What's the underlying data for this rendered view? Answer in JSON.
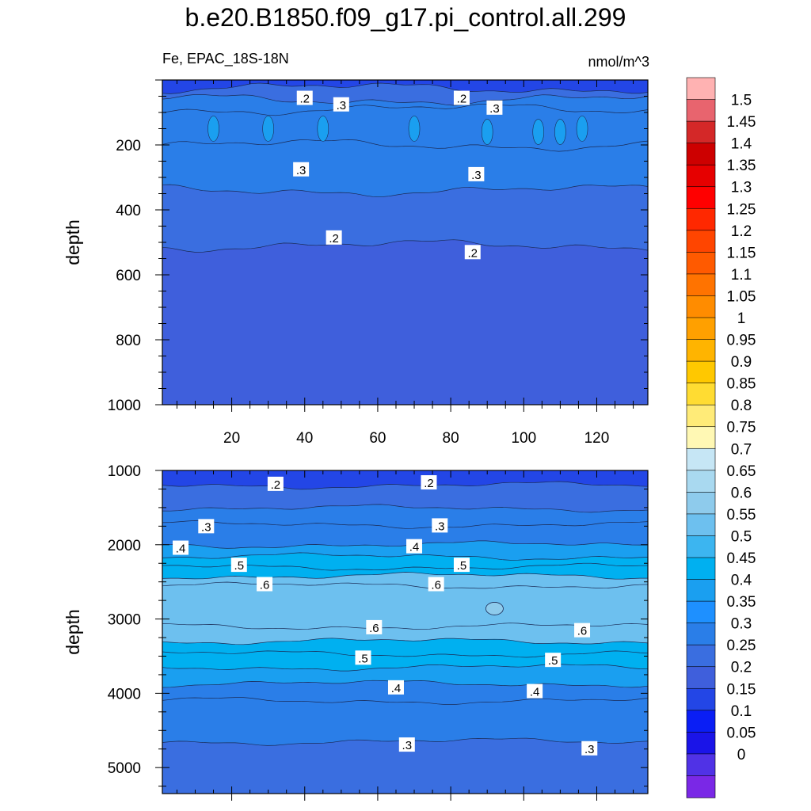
{
  "figure": {
    "title": "b.e20.B1850.f09_g17.pi_control.all.299",
    "variable_region": "Fe, EPAC_18S-18N",
    "units": "nmol/m^3"
  },
  "chart_data": [
    {
      "type": "heatmap",
      "panel": "upper",
      "ylabel": "depth",
      "xlabel": "",
      "y_reversed": true,
      "xlim": [
        1,
        134
      ],
      "ylim": [
        1000,
        0
      ],
      "xticks": [
        20,
        40,
        60,
        80,
        100,
        120
      ],
      "yticks": [
        200,
        400,
        600,
        800,
        1000
      ],
      "contour_labels": [
        {
          "text": ".2",
          "x": 40,
          "y": 55
        },
        {
          "text": ".3",
          "x": 50,
          "y": 75
        },
        {
          "text": ".2",
          "x": 83,
          "y": 55
        },
        {
          "text": ".3",
          "x": 92,
          "y": 85
        },
        {
          "text": ".3",
          "x": 39,
          "y": 275
        },
        {
          "text": ".3",
          "x": 87,
          "y": 290
        },
        {
          "text": ".2",
          "x": 48,
          "y": 485
        },
        {
          "text": ".2",
          "x": 86,
          "y": 530
        }
      ],
      "layers": [
        {
          "from_value": 0.15,
          "to_value": 0.2,
          "depth_top": 0,
          "depth_bottom": 25
        },
        {
          "from_value": 0.2,
          "to_value": 0.25,
          "depth_top": 25,
          "depth_bottom": 60
        },
        {
          "from_value": 0.25,
          "to_value": 0.3,
          "depth_top": 60,
          "depth_bottom": 90
        },
        {
          "from_value": 0.3,
          "to_value": 0.35,
          "depth_top": 90,
          "depth_bottom": 200
        },
        {
          "from_value": 0.3,
          "to_value": 0.3,
          "depth_top": 200,
          "depth_bottom": 340
        },
        {
          "from_value": 0.25,
          "to_value": 0.25,
          "depth_top": 340,
          "depth_bottom": 510
        },
        {
          "from_value": 0.2,
          "to_value": 0.2,
          "depth_top": 510,
          "depth_bottom": 1000
        }
      ]
    },
    {
      "type": "heatmap",
      "panel": "lower",
      "ylabel": "depth",
      "xlabel": "",
      "y_reversed": true,
      "xlim": [
        1,
        134
      ],
      "ylim": [
        5350,
        1000
      ],
      "xticks": [],
      "yticks": [
        1000,
        2000,
        3000,
        4000,
        5000
      ],
      "contour_labels": [
        {
          "text": ".2",
          "x": 32,
          "y": 1180
        },
        {
          "text": ".2",
          "x": 74,
          "y": 1160
        },
        {
          "text": ".3",
          "x": 13,
          "y": 1750
        },
        {
          "text": ".3",
          "x": 77,
          "y": 1740
        },
        {
          "text": ".4",
          "x": 6,
          "y": 2040
        },
        {
          "text": ".4",
          "x": 70,
          "y": 2020
        },
        {
          "text": ".5",
          "x": 22,
          "y": 2270
        },
        {
          "text": ".5",
          "x": 83,
          "y": 2270
        },
        {
          "text": ".6",
          "x": 29,
          "y": 2530
        },
        {
          "text": ".6",
          "x": 76,
          "y": 2530
        },
        {
          "text": ".6",
          "x": 59,
          "y": 3110
        },
        {
          "text": ".6",
          "x": 116,
          "y": 3150
        },
        {
          "text": ".5",
          "x": 56,
          "y": 3520
        },
        {
          "text": ".5",
          "x": 108,
          "y": 3550
        },
        {
          "text": ".4",
          "x": 65,
          "y": 3920
        },
        {
          "text": ".4",
          "x": 103,
          "y": 3970
        },
        {
          "text": ".3",
          "x": 68,
          "y": 4690
        },
        {
          "text": ".3",
          "x": 118,
          "y": 4740
        }
      ],
      "layers": [
        {
          "from_value": 0.15,
          "to_value": 0.2,
          "depth_top": 1000,
          "depth_bottom": 1200
        },
        {
          "from_value": 0.2,
          "to_value": 0.25,
          "depth_top": 1200,
          "depth_bottom": 1510
        },
        {
          "from_value": 0.25,
          "to_value": 0.3,
          "depth_top": 1510,
          "depth_bottom": 1730
        },
        {
          "from_value": 0.3,
          "to_value": 0.35,
          "depth_top": 1730,
          "depth_bottom": 2000
        },
        {
          "from_value": 0.35,
          "to_value": 0.4,
          "depth_top": 2000,
          "depth_bottom": 2160
        },
        {
          "from_value": 0.4,
          "to_value": 0.45,
          "depth_top": 2160,
          "depth_bottom": 2300
        },
        {
          "from_value": 0.45,
          "to_value": 0.5,
          "depth_top": 2300,
          "depth_bottom": 2420
        },
        {
          "from_value": 0.5,
          "to_value": 0.55,
          "depth_top": 2420,
          "depth_bottom": 2550
        },
        {
          "from_value": 0.55,
          "to_value": 0.6,
          "depth_top": 2550,
          "depth_bottom": 3100
        },
        {
          "from_value": 0.5,
          "to_value": 0.55,
          "depth_top": 3100,
          "depth_bottom": 3300
        },
        {
          "from_value": 0.45,
          "to_value": 0.5,
          "depth_top": 3300,
          "depth_bottom": 3470
        },
        {
          "from_value": 0.4,
          "to_value": 0.45,
          "depth_top": 3470,
          "depth_bottom": 3650
        },
        {
          "from_value": 0.35,
          "to_value": 0.4,
          "depth_top": 3650,
          "depth_bottom": 3870
        },
        {
          "from_value": 0.3,
          "to_value": 0.35,
          "depth_top": 3870,
          "depth_bottom": 4100
        },
        {
          "from_value": 0.25,
          "to_value": 0.3,
          "depth_top": 4100,
          "depth_bottom": 4650
        },
        {
          "from_value": 0.25,
          "to_value": 0.25,
          "depth_top": 4650,
          "depth_bottom": 5350
        }
      ]
    }
  ],
  "colorbar": {
    "labels": [
      "1.5",
      "1.45",
      "1.4",
      "1.35",
      "1.3",
      "1.25",
      "1.2",
      "1.15",
      "1.1",
      "1.05",
      "1",
      "0.95",
      "0.9",
      "0.85",
      "0.8",
      "0.75",
      "0.7",
      "0.65",
      "0.6",
      "0.55",
      "0.5",
      "0.45",
      "0.4",
      "0.35",
      "0.3",
      "0.25",
      "0.2",
      "0.15",
      "0.1",
      "0.05",
      "0"
    ],
    "colors": [
      "#ffb2b2",
      "#e8646e",
      "#d42828",
      "#cd0000",
      "#e60000",
      "#ff0000",
      "#ff2800",
      "#ff4500",
      "#ff5a00",
      "#ff7300",
      "#ff8c00",
      "#ffa000",
      "#ffb400",
      "#ffc800",
      "#ffdc32",
      "#ffeb78",
      "#fff8b4",
      "#c6e6f5",
      "#a9d9f0",
      "#8ecbec",
      "#6dc0ef",
      "#3cb5f0",
      "#00b0f0",
      "#1a9ff0",
      "#1e90ff",
      "#2a7ee8",
      "#3a6ee0",
      "#3f5fdc",
      "#2346e6",
      "#0a1ef5",
      "#1a14e8",
      "#5032e6",
      "#7a28e6"
    ]
  }
}
